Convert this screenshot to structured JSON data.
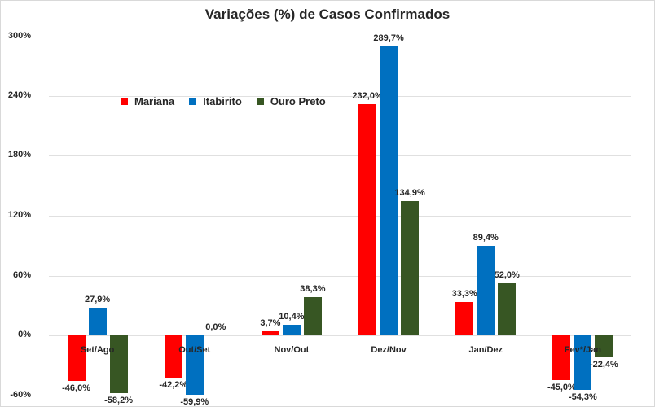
{
  "chart_data": {
    "type": "bar",
    "title": "Variações (%) de Casos Confirmados",
    "xlabel": "",
    "ylabel": "",
    "ylim": [
      -60,
      300
    ],
    "yticks": [
      "300%",
      "240%",
      "180%",
      "120%",
      "60%",
      "0%",
      "-60%"
    ],
    "ytick_values": [
      300,
      240,
      180,
      120,
      60,
      0,
      -60
    ],
    "grid": true,
    "legend_position": "top-left inside",
    "categories": [
      "Set/Ago",
      "Out/Set",
      "Nov/Out",
      "Dez/Nov",
      "Jan/Dez",
      "Fev*/Jan"
    ],
    "series": [
      {
        "name": "Mariana",
        "color": "#ff0000",
        "values": [
          -46.0,
          -42.2,
          3.7,
          232.0,
          33.3,
          -45.0
        ],
        "labels": [
          "-46,0%",
          "-42,2%",
          "3,7%",
          "232,0%",
          "33,3%",
          "-45,0%"
        ]
      },
      {
        "name": "Itabirito",
        "color": "#0070c0",
        "values": [
          27.9,
          -59.9,
          10.4,
          289.7,
          89.4,
          -54.3
        ],
        "labels": [
          "27,9%",
          "-59,9%",
          "10,4%",
          "289,7%",
          "89,4%",
          "-54,3%"
        ]
      },
      {
        "name": "Ouro Preto",
        "color": "#375623",
        "values": [
          -58.2,
          0.0,
          38.3,
          134.9,
          52.0,
          -22.4
        ],
        "labels": [
          "-58,2%",
          "0,0%",
          "38,3%",
          "134,9%",
          "52,0%",
          "-22,4%"
        ]
      }
    ]
  }
}
